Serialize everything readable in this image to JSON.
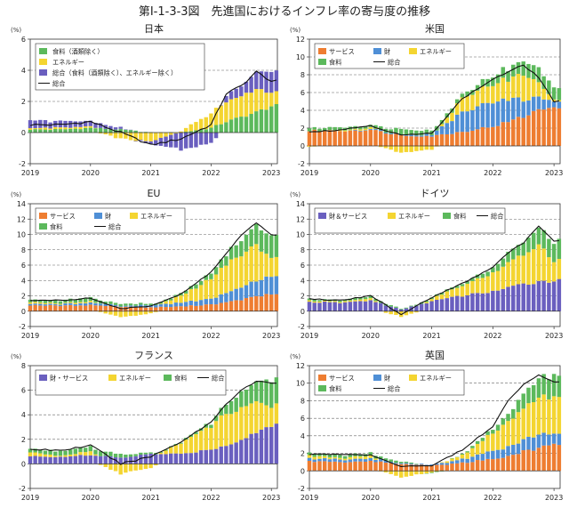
{
  "figure_title": "第Ⅰ-1-3-3図　先進国におけるインフレ率の寄与度の推移",
  "colors": {
    "services": "#ee7d31",
    "goods": "#4f8fd6",
    "energy": "#f4d531",
    "food": "#5cb95c",
    "core_jp": "#6a5fbf",
    "goods_services": "#6a5fbf",
    "total": "#111111"
  },
  "chart_data": [
    {
      "type": "bar",
      "stacked": true,
      "title": "日本",
      "y_unit": "(%)",
      "ylim": [
        -2,
        6
      ],
      "yticks": [
        -2,
        0,
        2,
        4,
        6
      ],
      "gridlines_dashed": [
        2,
        4
      ],
      "x_tick_labels": [
        "2019",
        "2020",
        "2021",
        "2022",
        "2023"
      ],
      "x_start": 2019.0,
      "x_end": 2023.1,
      "legend_placement": "top-left",
      "series": [
        {
          "key": "food",
          "name": "食料（酒類除く）",
          "x": [
            2019.0,
            2019.5,
            2020.0,
            2020.5,
            2021.0,
            2021.5,
            2022.0,
            2022.25,
            2022.5,
            2022.75,
            2023.0
          ],
          "values": [
            0.2,
            0.2,
            0.3,
            0.2,
            0.0,
            0.0,
            0.3,
            0.7,
            1.0,
            1.3,
            1.7
          ]
        },
        {
          "key": "energy",
          "name": "エネルギー",
          "x": [
            2019.0,
            2019.5,
            2020.0,
            2020.5,
            2021.0,
            2021.5,
            2022.0,
            2022.25,
            2022.5,
            2022.75,
            2023.0
          ],
          "values": [
            0.1,
            0.1,
            0.1,
            -0.4,
            -0.6,
            0.1,
            1.0,
            1.3,
            1.4,
            1.5,
            0.9
          ]
        },
        {
          "key": "core_jp",
          "name": "総合（食料（酒類除く）、エネルギー除く）",
          "x": [
            2019.0,
            2019.5,
            2020.0,
            2020.5,
            2021.0,
            2021.5,
            2022.0,
            2022.25,
            2022.5,
            2022.75,
            2023.0
          ],
          "values": [
            0.5,
            0.4,
            0.4,
            0.1,
            -0.2,
            -1.1,
            -0.7,
            0.4,
            0.6,
            1.1,
            1.4
          ]
        }
      ],
      "total": {
        "name": "総合",
        "x": [
          2019.0,
          2019.5,
          2020.0,
          2020.5,
          2021.0,
          2021.5,
          2022.0,
          2022.25,
          2022.5,
          2022.75,
          2023.0
        ],
        "values": [
          0.5,
          0.5,
          0.7,
          0.0,
          -0.8,
          -0.4,
          0.5,
          2.5,
          3.0,
          3.9,
          3.3
        ]
      }
    },
    {
      "type": "bar",
      "stacked": true,
      "title": "米国",
      "y_unit": "(%)",
      "ylim": [
        -2,
        12
      ],
      "yticks": [
        -2,
        0,
        2,
        4,
        6,
        8,
        10,
        12
      ],
      "gridlines_dashed": [
        2,
        4,
        6,
        8,
        10
      ],
      "x_tick_labels": [
        "2019",
        "2020",
        "2021",
        "2022",
        "2023"
      ],
      "x_start": 2019.0,
      "x_end": 2023.1,
      "legend_placement": "top-left",
      "series": [
        {
          "key": "services",
          "name": "サービス",
          "x": [
            2019.0,
            2019.5,
            2020.0,
            2020.5,
            2021.0,
            2021.5,
            2022.0,
            2022.25,
            2022.5,
            2022.75,
            2023.0
          ],
          "values": [
            1.7,
            1.7,
            1.8,
            1.2,
            1.1,
            1.6,
            2.2,
            2.7,
            3.3,
            4.0,
            4.5
          ]
        },
        {
          "key": "goods",
          "name": "財",
          "x": [
            2019.0,
            2019.5,
            2020.0,
            2020.5,
            2021.0,
            2021.5,
            2022.0,
            2022.25,
            2022.5,
            2022.75,
            2023.0
          ],
          "values": [
            0.0,
            0.0,
            0.1,
            0.1,
            0.2,
            2.2,
            2.8,
            2.5,
            1.9,
            1.4,
            0.7
          ]
        },
        {
          "key": "energy",
          "name": "エネルギー",
          "x": [
            2019.0,
            2019.5,
            2020.0,
            2020.5,
            2021.0,
            2021.5,
            2022.0,
            2022.25,
            2022.5,
            2022.75,
            2023.0
          ],
          "values": [
            -0.1,
            0.1,
            0.2,
            -0.8,
            -0.4,
            1.6,
            2.0,
            2.3,
            2.8,
            1.7,
            0.2
          ]
        },
        {
          "key": "food",
          "name": "食料",
          "x": [
            2019.0,
            2019.5,
            2020.0,
            2020.5,
            2021.0,
            2021.5,
            2022.0,
            2022.25,
            2022.5,
            2022.75,
            2023.0
          ],
          "values": [
            0.3,
            0.3,
            0.3,
            0.6,
            0.5,
            0.4,
            0.9,
            1.2,
            1.5,
            1.6,
            1.4
          ]
        }
      ],
      "total": {
        "name": "総合",
        "x": [
          2019.0,
          2019.5,
          2020.0,
          2020.5,
          2021.0,
          2021.5,
          2022.0,
          2022.25,
          2022.5,
          2022.75,
          2023.0
        ],
        "values": [
          1.6,
          1.8,
          2.3,
          1.2,
          1.4,
          5.3,
          7.5,
          8.3,
          9.1,
          7.7,
          5.0
        ]
      }
    },
    {
      "type": "bar",
      "stacked": true,
      "title": "EU",
      "y_unit": "(%)",
      "ylim": [
        -2,
        14
      ],
      "yticks": [
        -2,
        0,
        2,
        4,
        6,
        8,
        10,
        12,
        14
      ],
      "gridlines_dashed": [
        2,
        4,
        6,
        8,
        10,
        12
      ],
      "x_tick_labels": [
        "2019",
        "2020",
        "2021",
        "2022",
        "2023"
      ],
      "x_start": 2019.0,
      "x_end": 2023.1,
      "legend_placement": "top-left",
      "series": [
        {
          "key": "services",
          "name": "サービス",
          "x": [
            2019.0,
            2019.5,
            2020.0,
            2020.5,
            2021.0,
            2021.5,
            2022.0,
            2022.25,
            2022.5,
            2022.75,
            2023.0
          ],
          "values": [
            0.8,
            0.7,
            0.8,
            0.6,
            0.5,
            0.6,
            0.9,
            1.1,
            1.5,
            1.9,
            2.2
          ]
        },
        {
          "key": "goods",
          "name": "財",
          "x": [
            2019.0,
            2019.5,
            2020.0,
            2020.5,
            2021.0,
            2021.5,
            2022.0,
            2022.25,
            2022.5,
            2022.75,
            2023.0
          ],
          "values": [
            0.2,
            0.2,
            0.3,
            0.1,
            0.3,
            0.5,
            0.8,
            1.2,
            1.6,
            2.0,
            2.2
          ]
        },
        {
          "key": "energy",
          "name": "エネルギー",
          "x": [
            2019.0,
            2019.5,
            2020.0,
            2020.5,
            2021.0,
            2021.5,
            2022.0,
            2022.25,
            2022.5,
            2022.75,
            2023.0
          ],
          "values": [
            0.2,
            0.1,
            0.2,
            -0.8,
            -0.3,
            0.9,
            2.6,
            3.7,
            4.3,
            4.7,
            2.4
          ]
        },
        {
          "key": "food",
          "name": "食料",
          "x": [
            2019.0,
            2019.5,
            2020.0,
            2020.5,
            2021.0,
            2021.5,
            2022.0,
            2022.25,
            2022.5,
            2022.75,
            2023.0
          ],
          "values": [
            0.3,
            0.4,
            0.5,
            0.3,
            0.2,
            0.3,
            0.7,
            1.3,
            1.9,
            2.5,
            3.0
          ]
        }
      ],
      "total": {
        "name": "総合",
        "x": [
          2019.0,
          2019.5,
          2020.0,
          2020.5,
          2021.0,
          2021.5,
          2022.0,
          2022.25,
          2022.5,
          2022.75,
          2023.0
        ],
        "values": [
          1.4,
          1.4,
          1.7,
          0.3,
          0.7,
          2.2,
          5.1,
          7.5,
          9.9,
          11.5,
          9.9
        ]
      }
    },
    {
      "type": "bar",
      "stacked": true,
      "title": "ドイツ",
      "y_unit": "(%)",
      "ylim": [
        -2,
        14
      ],
      "yticks": [
        -2,
        0,
        2,
        4,
        6,
        8,
        10,
        12,
        14
      ],
      "gridlines_dashed": [
        2,
        4,
        6,
        8,
        10,
        12
      ],
      "x_tick_labels": [
        "2019",
        "2020",
        "2021",
        "2022",
        "2023"
      ],
      "x_start": 2019.0,
      "x_end": 2023.1,
      "legend_placement": "top-left",
      "series": [
        {
          "key": "goods_services",
          "name": "財＆サービス",
          "x": [
            2019.0,
            2019.5,
            2020.0,
            2020.5,
            2021.0,
            2021.5,
            2022.0,
            2022.25,
            2022.5,
            2022.75,
            2023.0
          ],
          "values": [
            1.2,
            1.1,
            1.4,
            0.2,
            1.3,
            2.0,
            2.6,
            3.0,
            3.5,
            3.9,
            4.0
          ]
        },
        {
          "key": "energy",
          "name": "エネルギー",
          "x": [
            2019.0,
            2019.5,
            2020.0,
            2020.5,
            2021.0,
            2021.5,
            2022.0,
            2022.25,
            2022.5,
            2022.75,
            2023.0
          ],
          "values": [
            0.2,
            0.1,
            0.3,
            -0.7,
            0.3,
            1.3,
            2.4,
            3.3,
            3.8,
            4.9,
            2.7
          ]
        },
        {
          "key": "food",
          "name": "食料",
          "x": [
            2019.0,
            2019.5,
            2020.0,
            2020.5,
            2021.0,
            2021.5,
            2022.0,
            2022.25,
            2022.5,
            2022.75,
            2023.0
          ],
          "values": [
            0.2,
            0.2,
            0.3,
            0.1,
            0.2,
            0.3,
            0.7,
            1.3,
            1.6,
            2.3,
            2.5
          ]
        }
      ],
      "total": {
        "name": "総合",
        "x": [
          2019.0,
          2019.5,
          2020.0,
          2020.5,
          2021.0,
          2021.5,
          2022.0,
          2022.25,
          2022.5,
          2022.75,
          2023.0
        ],
        "values": [
          1.6,
          1.4,
          2.0,
          -0.4,
          1.8,
          3.6,
          5.7,
          7.6,
          8.9,
          11.1,
          9.2
        ]
      }
    },
    {
      "type": "bar",
      "stacked": true,
      "title": "フランス",
      "y_unit": "(%)",
      "ylim": [
        -2,
        8
      ],
      "yticks": [
        -2,
        0,
        2,
        4,
        6,
        8
      ],
      "gridlines_dashed": [
        2,
        4,
        6
      ],
      "x_tick_labels": [
        "2019",
        "2020",
        "2021",
        "2022",
        "2023"
      ],
      "x_start": 2019.0,
      "x_end": 2023.1,
      "legend_placement": "top-left",
      "series": [
        {
          "key": "goods_services",
          "name": "財・サービス",
          "x": [
            2019.0,
            2019.5,
            2020.0,
            2020.5,
            2021.0,
            2021.5,
            2022.0,
            2022.25,
            2022.5,
            2022.75,
            2023.0
          ],
          "values": [
            0.6,
            0.6,
            0.7,
            0.5,
            0.8,
            0.8,
            1.2,
            1.5,
            2.0,
            2.6,
            3.1
          ]
        },
        {
          "key": "energy",
          "name": "エネルギー",
          "x": [
            2019.0,
            2019.5,
            2020.0,
            2020.5,
            2021.0,
            2021.5,
            2022.0,
            2022.25,
            2022.5,
            2022.75,
            2023.0
          ],
          "values": [
            0.3,
            0.1,
            0.3,
            -0.8,
            -0.3,
            0.9,
            1.9,
            2.6,
            2.7,
            2.5,
            1.6
          ]
        },
        {
          "key": "food",
          "name": "食料",
          "x": [
            2019.0,
            2019.5,
            2020.0,
            2020.5,
            2021.0,
            2021.5,
            2022.0,
            2022.25,
            2022.5,
            2022.75,
            2023.0
          ],
          "values": [
            0.3,
            0.4,
            0.4,
            0.3,
            0.1,
            0.1,
            0.3,
            0.8,
            1.3,
            1.6,
            2.2
          ]
        }
      ],
      "total": {
        "name": "総合",
        "x": [
          2019.0,
          2019.5,
          2020.0,
          2020.5,
          2021.0,
          2021.5,
          2022.0,
          2022.25,
          2022.5,
          2022.75,
          2023.0
        ],
        "values": [
          1.2,
          1.1,
          1.5,
          0.0,
          0.6,
          1.8,
          3.4,
          4.9,
          6.0,
          6.7,
          6.6
        ]
      }
    },
    {
      "type": "bar",
      "stacked": true,
      "title": "英国",
      "y_unit": "(%)",
      "ylim": [
        -2,
        12
      ],
      "yticks": [
        -2,
        0,
        2,
        4,
        6,
        8,
        10,
        12
      ],
      "gridlines_dashed": [
        2,
        4,
        6,
        8,
        10
      ],
      "x_tick_labels": [
        "2019",
        "2020",
        "2021",
        "2022",
        "2023"
      ],
      "x_start": 2019.0,
      "x_end": 2023.1,
      "legend_placement": "top-left",
      "series": [
        {
          "key": "services",
          "name": "サービス",
          "x": [
            2019.0,
            2019.5,
            2020.0,
            2020.5,
            2021.0,
            2021.5,
            2022.0,
            2022.25,
            2022.5,
            2022.75,
            2023.0
          ],
          "values": [
            1.1,
            1.0,
            1.1,
            0.8,
            0.6,
            0.9,
            1.4,
            1.7,
            2.2,
            2.6,
            3.0
          ]
        },
        {
          "key": "goods",
          "name": "財",
          "x": [
            2019.0,
            2019.5,
            2020.0,
            2020.5,
            2021.0,
            2021.5,
            2022.0,
            2022.25,
            2022.5,
            2022.75,
            2023.0
          ],
          "values": [
            0.3,
            0.3,
            0.3,
            0.1,
            0.1,
            0.4,
            0.9,
            1.1,
            1.3,
            1.5,
            1.2
          ]
        },
        {
          "key": "energy",
          "name": "エネルギー",
          "x": [
            2019.0,
            2019.5,
            2020.0,
            2020.5,
            2021.0,
            2021.5,
            2022.0,
            2022.25,
            2022.5,
            2022.75,
            2023.0
          ],
          "values": [
            0.3,
            0.2,
            0.3,
            -0.7,
            -0.2,
            0.5,
            2.0,
            3.0,
            3.6,
            4.3,
            4.0
          ]
        },
        {
          "key": "food",
          "name": "食料",
          "x": [
            2019.0,
            2019.5,
            2020.0,
            2020.5,
            2021.0,
            2021.5,
            2022.0,
            2022.25,
            2022.5,
            2022.75,
            2023.0
          ],
          "values": [
            0.3,
            0.3,
            0.3,
            0.2,
            -0.1,
            0.1,
            0.5,
            0.8,
            1.6,
            2.3,
            2.5
          ]
        }
      ],
      "total": {
        "name": "総合",
        "x": [
          2019.0,
          2019.5,
          2020.0,
          2020.5,
          2021.0,
          2021.5,
          2022.0,
          2022.25,
          2022.5,
          2022.75,
          2023.0
        ],
        "values": [
          1.9,
          1.9,
          1.8,
          0.5,
          0.6,
          2.4,
          5.1,
          8.0,
          9.8,
          11.0,
          10.1
        ]
      }
    }
  ]
}
